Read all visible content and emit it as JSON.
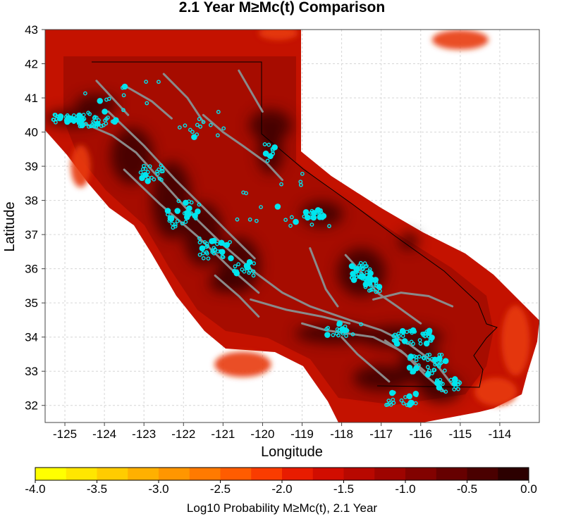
{
  "title": "2.1 Year M≥Mc(t) Comparison",
  "x_axis": {
    "label": "Longitude",
    "ticks": [
      "-125",
      "-124",
      "-123",
      "-122",
      "-121",
      "-120",
      "-119",
      "-118",
      "-117",
      "-116",
      "-115",
      "-114"
    ],
    "values": [
      -125,
      -124,
      -123,
      -122,
      -121,
      -120,
      -119,
      -118,
      -117,
      -116,
      -115,
      -114
    ],
    "range": [
      -125.5,
      -113.0
    ]
  },
  "y_axis": {
    "label": "Latitude",
    "ticks": [
      "32",
      "33",
      "34",
      "35",
      "36",
      "37",
      "38",
      "39",
      "40",
      "41",
      "42",
      "43"
    ],
    "values": [
      32,
      33,
      34,
      35,
      36,
      37,
      38,
      39,
      40,
      41,
      42,
      43
    ],
    "range": [
      31.5,
      43.0
    ]
  },
  "colorbar": {
    "label": "Log10 Probability M≥Mc(t), 2.1 Year",
    "ticks": [
      "-4.0",
      "-3.5",
      "-3.0",
      "-2.5",
      "-2.0",
      "-1.5",
      "-1.0",
      "-0.5",
      "0.0"
    ],
    "tick_values": [
      -4.0,
      -3.5,
      -3.0,
      -2.5,
      -2.0,
      -1.5,
      -1.0,
      -0.5,
      0.0
    ],
    "range": [
      -4.0,
      0.0
    ],
    "colors": [
      "#ffff00",
      "#ffe600",
      "#ffcc00",
      "#ffb000",
      "#ff9600",
      "#ff7a00",
      "#ff5c00",
      "#fa3c00",
      "#e81c00",
      "#d10d00",
      "#b80800",
      "#9e0400",
      "#820200",
      "#660000",
      "#4a0000",
      "#2c0000"
    ]
  },
  "map_colors": {
    "background_fill": "#c41200",
    "ocean_edge": "#e83a10",
    "high_activity": "#3a0000",
    "faults": "#8a8a8a",
    "earthquakes": "#00e5ee",
    "border": "#000000"
  },
  "grid": true
}
